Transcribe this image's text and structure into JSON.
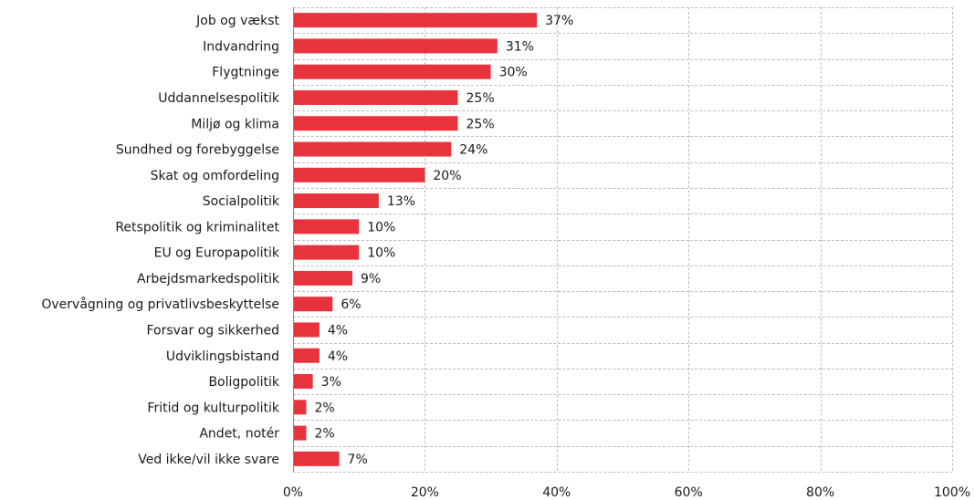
{
  "chart_data": {
    "type": "bar",
    "orientation": "horizontal",
    "categories": [
      "Job og vækst",
      "Indvandring",
      "Flygtninge",
      "Uddannelsespolitik",
      "Miljø og klima",
      "Sundhed og forebyggelse",
      "Skat og omfordeling",
      "Socialpolitik",
      "Retspolitik og kriminalitet",
      "EU og Europapolitik",
      "Arbejdsmarkedspolitik",
      "Overvågning og privatlivsbeskyttelse",
      "Forsvar og sikkerhed",
      "Udviklingsbistand",
      "Boligpolitik",
      "Fritid og kulturpolitik",
      "Andet, notér",
      "Ved ikke/vil ikke svare"
    ],
    "values": [
      37,
      31,
      30,
      25,
      25,
      24,
      20,
      13,
      10,
      10,
      9,
      6,
      4,
      4,
      3,
      2,
      2,
      7
    ],
    "data_labels": [
      "37%",
      "31%",
      "30%",
      "25%",
      "25%",
      "24%",
      "20%",
      "13%",
      "10%",
      "10%",
      "9%",
      "6%",
      "4%",
      "4%",
      "3%",
      "2%",
      "2%",
      "7%"
    ],
    "xlim": [
      0,
      100
    ],
    "x_ticks": [
      0,
      20,
      40,
      60,
      80,
      100
    ],
    "x_tick_labels": [
      "0%",
      "20%",
      "40%",
      "60%",
      "80%",
      "100%"
    ],
    "title": "",
    "xlabel": "",
    "ylabel": "",
    "grid": true,
    "legend": "none",
    "colors": {
      "bar": "#e8323c",
      "grid": "#bdbdbd",
      "axis": "#8c8c8c",
      "text": "#1a1a1a"
    }
  }
}
